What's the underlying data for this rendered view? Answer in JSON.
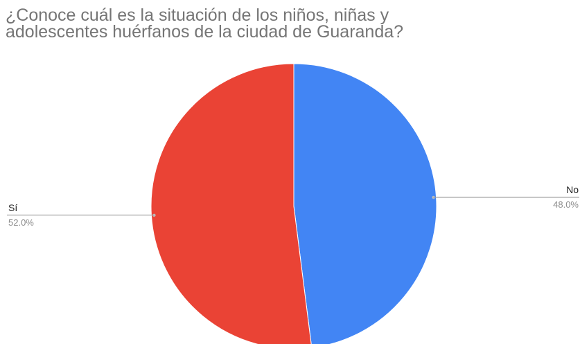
{
  "chart_data": {
    "type": "pie",
    "title": "¿Conoce cuál es la situación de los niños, niñas y\nadolescentes huérfanos de la ciudad de Guaranda?",
    "slices": [
      {
        "label": "No",
        "value": 48.0,
        "display": "48.0%",
        "color": "#4285f4"
      },
      {
        "label": "Sí",
        "value": 52.0,
        "display": "52.0%",
        "color": "#ea4335"
      }
    ],
    "start_angle_deg": 0,
    "direction": "clockwise",
    "legend": "labels beside slices with leader lines"
  }
}
